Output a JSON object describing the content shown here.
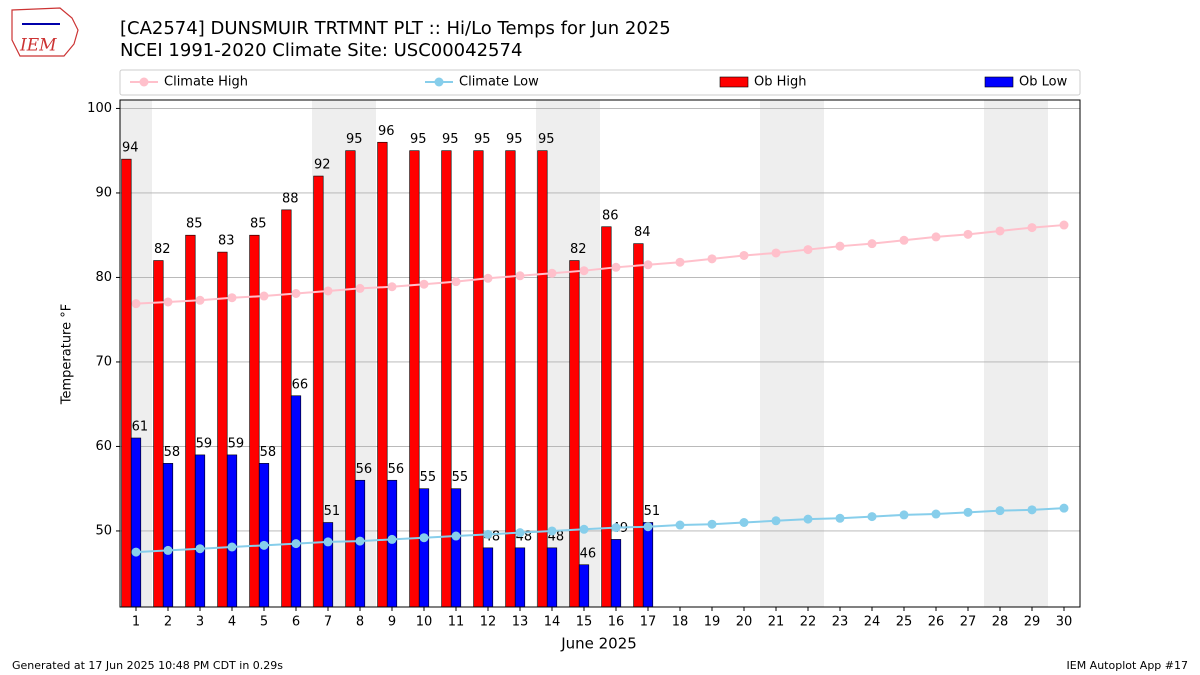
{
  "chart_data": {
    "type": "bar",
    "logo_text": "IEM",
    "title": "[CA2574] DUNSMUIR TRTMNT PLT :: Hi/Lo Temps for Jun 2025",
    "subtitle": "NCEI 1991-2020 Climate Site: USC00042574",
    "xlabel": "June 2025",
    "ylabel": "Temperature °F",
    "footer_left": "Generated at 17 Jun 2025 10:48 PM CDT in 0.29s",
    "footer_right": "IEM Autoplot App #17",
    "x": [
      1,
      2,
      3,
      4,
      5,
      6,
      7,
      8,
      9,
      10,
      11,
      12,
      13,
      14,
      15,
      16,
      17,
      18,
      19,
      20,
      21,
      22,
      23,
      24,
      25,
      26,
      27,
      28,
      29,
      30
    ],
    "xlim": [
      0.5,
      30.5
    ],
    "xticks": [
      1,
      2,
      3,
      4,
      5,
      6,
      7,
      8,
      9,
      10,
      11,
      12,
      13,
      14,
      15,
      16,
      17,
      18,
      19,
      20,
      21,
      22,
      23,
      24,
      25,
      26,
      27,
      28,
      29,
      30
    ],
    "ylim": [
      41,
      101
    ],
    "yticks": [
      50,
      60,
      70,
      80,
      90,
      100
    ],
    "grid": true,
    "shaded_days": [
      1,
      7,
      8,
      14,
      15,
      21,
      22,
      28,
      29
    ],
    "shade_color": "#eeeeee",
    "series": [
      {
        "name": "Climate High",
        "kind": "line",
        "color": "#ffc0cb",
        "values": [
          76.9,
          77.1,
          77.3,
          77.6,
          77.8,
          78.1,
          78.4,
          78.7,
          78.9,
          79.2,
          79.5,
          79.9,
          80.2,
          80.5,
          80.8,
          81.2,
          81.5,
          81.8,
          82.2,
          82.6,
          82.9,
          83.3,
          83.7,
          84.0,
          84.4,
          84.8,
          85.1,
          85.5,
          85.9,
          86.2
        ]
      },
      {
        "name": "Climate Low",
        "kind": "line",
        "color": "#87ceeb",
        "values": [
          47.5,
          47.7,
          47.9,
          48.1,
          48.3,
          48.5,
          48.7,
          48.8,
          49.0,
          49.2,
          49.4,
          49.6,
          49.8,
          50.0,
          50.2,
          50.4,
          50.5,
          50.7,
          50.8,
          51.0,
          51.2,
          51.4,
          51.5,
          51.7,
          51.9,
          52.0,
          52.2,
          52.4,
          52.5,
          52.7
        ]
      },
      {
        "name": "Ob High",
        "kind": "bar",
        "color": "#ff0000",
        "values": [
          94,
          82,
          85,
          83,
          85,
          88,
          92,
          95,
          96,
          95,
          95,
          95,
          95,
          95,
          82,
          86,
          84,
          null,
          null,
          null,
          null,
          null,
          null,
          null,
          null,
          null,
          null,
          null,
          null,
          null
        ]
      },
      {
        "name": "Ob Low",
        "kind": "bar",
        "color": "#0000ff",
        "values": [
          61,
          58,
          59,
          59,
          58,
          66,
          51,
          56,
          56,
          55,
          55,
          48,
          48,
          48,
          46,
          49,
          51,
          null,
          null,
          null,
          null,
          null,
          null,
          null,
          null,
          null,
          null,
          null,
          null,
          null
        ]
      }
    ]
  }
}
